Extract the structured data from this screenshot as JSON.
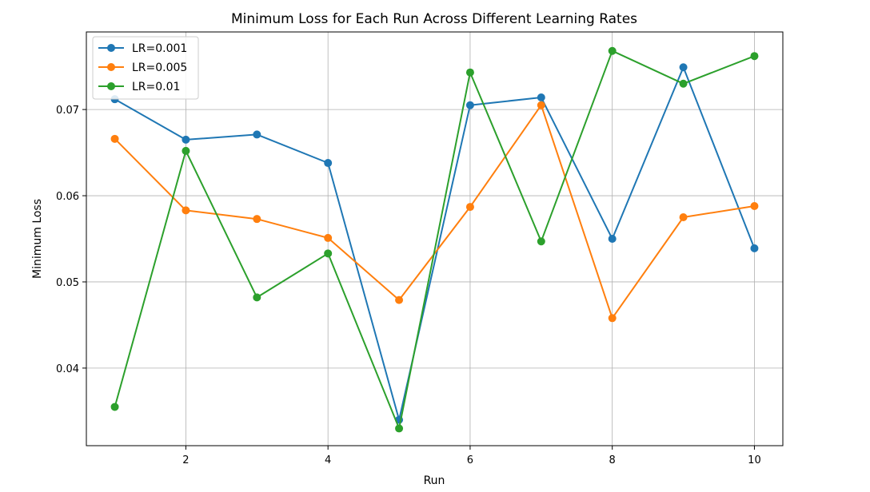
{
  "chart_data": {
    "type": "line",
    "title": "Minimum Loss for Each Run Across Different Learning Rates",
    "xlabel": "Run",
    "ylabel": "Minimum Loss",
    "x": [
      1,
      2,
      3,
      4,
      5,
      6,
      7,
      8,
      9,
      10
    ],
    "xlim": [
      0.6,
      10.4
    ],
    "ylim": [
      0.031,
      0.079
    ],
    "xticks": [
      2,
      4,
      6,
      8,
      10
    ],
    "xtick_labels": [
      "2",
      "4",
      "6",
      "8",
      "10"
    ],
    "yticks": [
      0.04,
      0.05,
      0.06,
      0.07
    ],
    "ytick_labels": [
      "0.04",
      "0.05",
      "0.06",
      "0.07"
    ],
    "grid": true,
    "legend_position": "top-left",
    "series": [
      {
        "name": "LR=0.001",
        "color": "#1f77b4",
        "values": [
          0.0712,
          0.0665,
          0.0671,
          0.0638,
          0.034,
          0.0705,
          0.0714,
          0.055,
          0.0749,
          0.0539
        ]
      },
      {
        "name": "LR=0.005",
        "color": "#ff7f0e",
        "values": [
          0.0666,
          0.0583,
          0.0573,
          0.0551,
          0.0479,
          0.0587,
          0.0705,
          0.0458,
          0.0575,
          0.0588
        ]
      },
      {
        "name": "LR=0.01",
        "color": "#2ca02c",
        "values": [
          0.0355,
          0.0652,
          0.0482,
          0.0533,
          0.033,
          0.0743,
          0.0547,
          0.0768,
          0.073,
          0.0762
        ]
      }
    ]
  }
}
